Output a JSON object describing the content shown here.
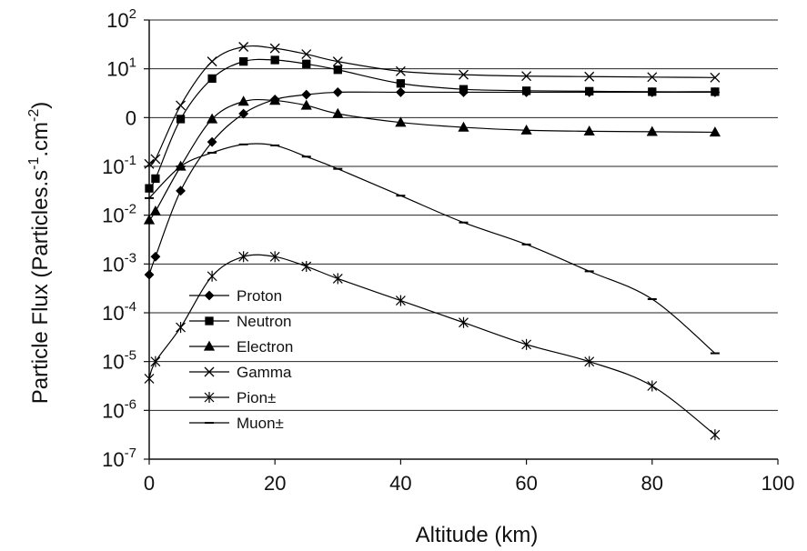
{
  "chart_data": {
    "type": "line",
    "xlabel": "Altitude (km)",
    "ylabel": {
      "prefix": "Particle Flux (Particles.s",
      "sup1": "-1",
      "middle": ".cm",
      "sup2": "-2",
      "suffix": ")"
    },
    "xlim": [
      0,
      100
    ],
    "xticks": [
      "0",
      "20",
      "40",
      "60",
      "80",
      "100"
    ],
    "ylim_levels": [
      -7,
      2
    ],
    "y_scale": "log",
    "yticks": [
      {
        "level": 2,
        "base": "10",
        "sup": "2"
      },
      {
        "level": 1,
        "base": "10",
        "sup": "1"
      },
      {
        "level": 0,
        "base": "0",
        "sup": ""
      },
      {
        "level": -1,
        "base": "10",
        "sup": "-1"
      },
      {
        "level": -2,
        "base": "10",
        "sup": "-2"
      },
      {
        "level": -3,
        "base": "10",
        "sup": "-3"
      },
      {
        "level": -4,
        "base": "10",
        "sup": "-4"
      },
      {
        "level": -5,
        "base": "10",
        "sup": "-5"
      },
      {
        "level": -6,
        "base": "10",
        "sup": "-6"
      },
      {
        "level": -7,
        "base": "10",
        "sup": "-7"
      }
    ],
    "grid": "horizontal",
    "legend_position": "lower-left",
    "series": [
      {
        "name": "Proton",
        "marker": "diamond",
        "x": [
          0,
          1,
          5,
          10,
          15,
          20,
          25,
          30,
          40,
          50,
          60,
          70,
          80,
          90
        ],
        "y": [
          -3.22,
          -2.85,
          -1.5,
          -0.5,
          0.08,
          0.37,
          0.47,
          0.52,
          0.52,
          0.52,
          0.52,
          0.52,
          0.52,
          0.52
        ]
      },
      {
        "name": "Neutron",
        "marker": "square",
        "x": [
          0,
          1,
          5,
          10,
          15,
          20,
          25,
          30,
          40,
          50,
          60,
          70,
          80,
          90
        ],
        "y": [
          -1.45,
          -1.25,
          -0.03,
          0.8,
          1.15,
          1.18,
          1.1,
          0.98,
          0.7,
          0.58,
          0.55,
          0.54,
          0.53,
          0.53
        ]
      },
      {
        "name": "Electron",
        "marker": "triangle",
        "x": [
          0,
          1,
          5,
          10,
          15,
          20,
          25,
          30,
          40,
          50,
          60,
          70,
          80,
          90
        ],
        "y": [
          -2.1,
          -1.92,
          -1.0,
          -0.03,
          0.33,
          0.35,
          0.25,
          0.08,
          -0.1,
          -0.2,
          -0.26,
          -0.28,
          -0.29,
          -0.3
        ]
      },
      {
        "name": "Gamma",
        "marker": "x",
        "x": [
          0,
          1,
          5,
          10,
          15,
          20,
          25,
          30,
          40,
          50,
          60,
          70,
          80,
          90
        ],
        "y": [
          -0.95,
          -0.85,
          0.25,
          1.15,
          1.45,
          1.42,
          1.3,
          1.15,
          0.95,
          0.88,
          0.85,
          0.84,
          0.83,
          0.82
        ]
      },
      {
        "name": "Pion±",
        "marker": "asterisk",
        "x": [
          0,
          1,
          5,
          10,
          15,
          20,
          25,
          30,
          40,
          50,
          60,
          70,
          80,
          90
        ],
        "y": [
          -5.35,
          -5.0,
          -4.3,
          -3.25,
          -2.85,
          -2.85,
          -3.05,
          -3.3,
          -3.75,
          -4.2,
          -4.65,
          -5.0,
          -5.5,
          -6.5
        ]
      },
      {
        "name": "Muon±",
        "marker": "dash",
        "x": [
          0,
          5,
          10,
          15,
          20,
          25,
          30,
          40,
          50,
          60,
          70,
          80,
          90
        ],
        "y": [
          -1.65,
          -1.0,
          -0.72,
          -0.55,
          -0.57,
          -0.8,
          -1.05,
          -1.6,
          -2.15,
          -2.6,
          -3.15,
          -3.72,
          -4.83
        ]
      }
    ]
  }
}
